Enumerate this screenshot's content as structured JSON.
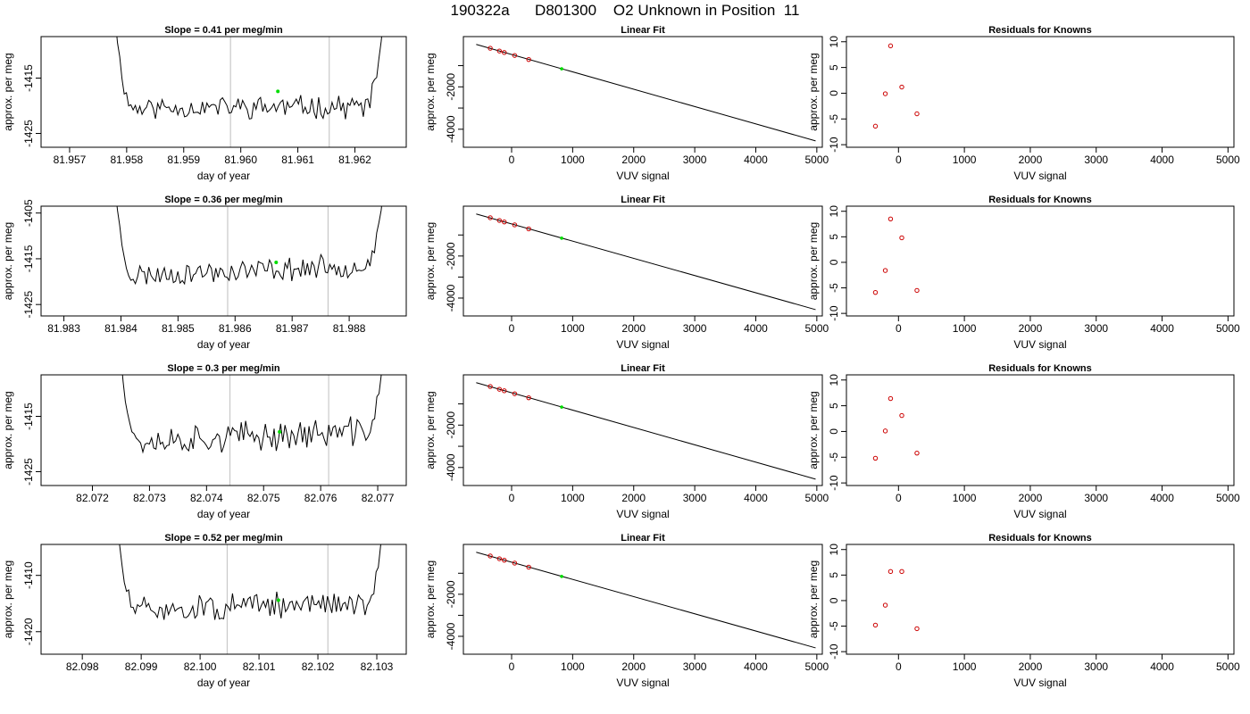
{
  "page": {
    "title": "190322a      D801300    O2 Unknown in Position  11"
  },
  "style": {
    "trace_color": "#000000",
    "marker_color": "#00dd00",
    "residual_color": "#cc0000",
    "window_line_color": "#c8c8c8"
  },
  "chart_data": [
    {
      "type": "line",
      "row": 0,
      "col": 0,
      "title": "Slope =  0.41  per meg/min",
      "xlabel": "day of year",
      "ylabel": "approx. per meg",
      "xlim": [
        81.9565,
        81.9629
      ],
      "ylim": [
        -1427.5,
        -1407.5
      ],
      "xticks": [
        81.957,
        81.958,
        81.959,
        81.96,
        81.961,
        81.962
      ],
      "xtick_labels": [
        "81.957",
        "81.958",
        "81.959",
        "81.960",
        "81.961",
        "81.962"
      ],
      "yticks": [
        -1425,
        -1415
      ],
      "ytick_labels": [
        "-1425",
        "-1415"
      ],
      "trace": {
        "x_start": 81.9578,
        "x_end": 81.9625,
        "y_start": -1407.5,
        "y_end": -1407.5,
        "base": -1420.4,
        "trend": 0.3,
        "amp": 1.7,
        "points": 120,
        "seed": 11
      },
      "window_lines": [
        81.95982,
        81.96155
      ],
      "marker": {
        "x": 81.96065,
        "y": -1417.4
      }
    },
    {
      "type": "line",
      "row": 0,
      "col": 1,
      "title": "Linear Fit",
      "xlabel": "VUV signal",
      "ylabel": "approx. per meg",
      "xlim": [
        -790,
        5090
      ],
      "ylim": [
        -4850,
        370
      ],
      "xticks": [
        0,
        1000,
        2000,
        3000,
        4000,
        5000
      ],
      "xtick_labels": [
        "0",
        "1000",
        "2000",
        "3000",
        "4000",
        "5000"
      ],
      "yticks": [
        -4000,
        -3000,
        -2000,
        -1000
      ],
      "ytick_labels": [
        "-4000",
        "",
        "-2000",
        ""
      ],
      "fit_line": {
        "x": [
          -580,
          4980
        ],
        "y": [
          0,
          -4550
        ]
      },
      "points": [
        {
          "x": -350,
          "y": -180
        },
        {
          "x": -200,
          "y": -310
        },
        {
          "x": -120,
          "y": -380
        },
        {
          "x": 50,
          "y": -520
        },
        {
          "x": 280,
          "y": -710
        }
      ],
      "unknown_point": {
        "x": 820,
        "y": -1150
      }
    },
    {
      "type": "scatter",
      "row": 0,
      "col": 2,
      "title": "Residuals for Knowns",
      "xlabel": "VUV signal",
      "ylabel": "approx. per meg",
      "xlim": [
        -790,
        5090
      ],
      "ylim": [
        -10.5,
        11
      ],
      "xticks": [
        0,
        1000,
        2000,
        3000,
        4000,
        5000
      ],
      "xtick_labels": [
        "0",
        "1000",
        "2000",
        "3000",
        "4000",
        "5000"
      ],
      "yticks": [
        -10,
        -5,
        0,
        5,
        10
      ],
      "ytick_labels": [
        "-10",
        "-5",
        "0",
        "5",
        "10"
      ],
      "points": [
        {
          "x": -350,
          "y": -6.4
        },
        {
          "x": -200,
          "y": -0.1
        },
        {
          "x": -120,
          "y": 9.2
        },
        {
          "x": 50,
          "y": 1.2
        },
        {
          "x": 280,
          "y": -4
        }
      ]
    },
    {
      "type": "line",
      "row": 1,
      "col": 0,
      "title": "Slope =  0.36  per meg/min",
      "xlabel": "day of year",
      "ylabel": "approx. per meg",
      "xlim": [
        81.9826,
        81.989
      ],
      "ylim": [
        -1427.5,
        -1403.5
      ],
      "xticks": [
        81.983,
        81.984,
        81.985,
        81.986,
        81.987,
        81.988
      ],
      "xtick_labels": [
        "81.983",
        "81.984",
        "81.985",
        "81.986",
        "81.987",
        "81.988"
      ],
      "yticks": [
        -1425,
        -1415,
        -1405
      ],
      "ytick_labels": [
        "-1425",
        "-1415",
        "-1405"
      ],
      "trace": {
        "x_start": 81.9839,
        "x_end": 81.9886,
        "y_start": -1403.5,
        "y_end": -1403.5,
        "base": -1418.8,
        "trend": 2.5,
        "amp": 2.1,
        "points": 120,
        "seed": 23
      },
      "window_lines": [
        81.98587,
        81.98763
      ],
      "marker": {
        "x": 81.98672,
        "y": -1415.8
      }
    },
    {
      "type": "line",
      "row": 1,
      "col": 1,
      "title": "Linear Fit",
      "xlabel": "VUV signal",
      "ylabel": "approx. per meg",
      "xlim": [
        -790,
        5090
      ],
      "ylim": [
        -4850,
        370
      ],
      "xticks": [
        0,
        1000,
        2000,
        3000,
        4000,
        5000
      ],
      "xtick_labels": [
        "0",
        "1000",
        "2000",
        "3000",
        "4000",
        "5000"
      ],
      "yticks": [
        -4000,
        -3000,
        -2000,
        -1000
      ],
      "ytick_labels": [
        "-4000",
        "",
        "-2000",
        ""
      ],
      "fit_line": {
        "x": [
          -580,
          4980
        ],
        "y": [
          0,
          -4550
        ]
      },
      "points": [
        {
          "x": -350,
          "y": -180
        },
        {
          "x": -200,
          "y": -310
        },
        {
          "x": -120,
          "y": -380
        },
        {
          "x": 50,
          "y": -520
        },
        {
          "x": 280,
          "y": -710
        }
      ],
      "unknown_point": {
        "x": 820,
        "y": -1150
      }
    },
    {
      "type": "scatter",
      "row": 1,
      "col": 2,
      "title": "Residuals for Knowns",
      "xlabel": "VUV signal",
      "ylabel": "approx. per meg",
      "xlim": [
        -790,
        5090
      ],
      "ylim": [
        -10.5,
        11
      ],
      "xticks": [
        0,
        1000,
        2000,
        3000,
        4000,
        5000
      ],
      "xtick_labels": [
        "0",
        "1000",
        "2000",
        "3000",
        "4000",
        "5000"
      ],
      "yticks": [
        -10,
        -5,
        0,
        5,
        10
      ],
      "ytick_labels": [
        "-10",
        "-5",
        "0",
        "5",
        "10"
      ],
      "points": [
        {
          "x": -350,
          "y": -5.9
        },
        {
          "x": -200,
          "y": -1.6
        },
        {
          "x": -120,
          "y": 8.5
        },
        {
          "x": 50,
          "y": 4.8
        },
        {
          "x": 280,
          "y": -5.5
        }
      ]
    },
    {
      "type": "line",
      "row": 2,
      "col": 0,
      "title": "Slope =  0.3  per meg/min",
      "xlabel": "day of year",
      "ylabel": "approx. per meg",
      "xlim": [
        82.0711,
        82.0775
      ],
      "ylim": [
        -1427.5,
        -1407.5
      ],
      "xticks": [
        82.072,
        82.073,
        82.074,
        82.075,
        82.076,
        82.077
      ],
      "xtick_labels": [
        "82.072",
        "82.073",
        "82.074",
        "82.075",
        "82.076",
        "82.077"
      ],
      "yticks": [
        -1425,
        -1415
      ],
      "ytick_labels": [
        "-1425",
        "-1415"
      ],
      "trace": {
        "x_start": 82.0725,
        "x_end": 82.0771,
        "y_start": -1407.5,
        "y_end": -1407.5,
        "base": -1419.6,
        "trend": 2.0,
        "amp": 2.2,
        "points": 120,
        "seed": 37
      },
      "window_lines": [
        82.07441,
        82.07614
      ],
      "marker": {
        "x": 82.07528,
        "y": -1417.8
      }
    },
    {
      "type": "line",
      "row": 2,
      "col": 1,
      "title": "Linear Fit",
      "xlabel": "VUV signal",
      "ylabel": "approx. per meg",
      "xlim": [
        -790,
        5090
      ],
      "ylim": [
        -4850,
        370
      ],
      "xticks": [
        0,
        1000,
        2000,
        3000,
        4000,
        5000
      ],
      "xtick_labels": [
        "0",
        "1000",
        "2000",
        "3000",
        "4000",
        "5000"
      ],
      "yticks": [
        -4000,
        -3000,
        -2000,
        -1000
      ],
      "ytick_labels": [
        "-4000",
        "",
        "-2000",
        ""
      ],
      "fit_line": {
        "x": [
          -580,
          4980
        ],
        "y": [
          0,
          -4550
        ]
      },
      "points": [
        {
          "x": -350,
          "y": -180
        },
        {
          "x": -200,
          "y": -310
        },
        {
          "x": -120,
          "y": -380
        },
        {
          "x": 50,
          "y": -520
        },
        {
          "x": 280,
          "y": -710
        }
      ],
      "unknown_point": {
        "x": 820,
        "y": -1150
      }
    },
    {
      "type": "scatter",
      "row": 2,
      "col": 2,
      "title": "Residuals for Knowns",
      "xlabel": "VUV signal",
      "ylabel": "approx. per meg",
      "xlim": [
        -790,
        5090
      ],
      "ylim": [
        -10.5,
        11
      ],
      "xticks": [
        0,
        1000,
        2000,
        3000,
        4000,
        5000
      ],
      "xtick_labels": [
        "0",
        "1000",
        "2000",
        "3000",
        "4000",
        "5000"
      ],
      "yticks": [
        -10,
        -5,
        0,
        5,
        10
      ],
      "ytick_labels": [
        "-10",
        "-5",
        "0",
        "5",
        "10"
      ],
      "points": [
        {
          "x": -350,
          "y": -5.2
        },
        {
          "x": -200,
          "y": 0.1
        },
        {
          "x": -120,
          "y": 6.4
        },
        {
          "x": 50,
          "y": 3.1
        },
        {
          "x": 280,
          "y": -4.2
        }
      ]
    },
    {
      "type": "line",
      "row": 3,
      "col": 0,
      "title": "Slope =  0.52  per meg/min",
      "xlabel": "day of year",
      "ylabel": "approx. per meg",
      "xlim": [
        82.0973,
        82.1035
      ],
      "ylim": [
        -1424,
        -1404.5
      ],
      "xticks": [
        82.098,
        82.099,
        82.1,
        82.101,
        82.102,
        82.103
      ],
      "xtick_labels": [
        "82.098",
        "82.099",
        "82.100",
        "82.101",
        "82.102",
        "82.103"
      ],
      "yticks": [
        -1420,
        -1410
      ],
      "ytick_labels": [
        "-1420",
        "-1410"
      ],
      "trace": {
        "x_start": 82.0986,
        "x_end": 82.1031,
        "y_start": -1404.5,
        "y_end": -1404.5,
        "base": -1416.3,
        "trend": 1.5,
        "amp": 1.9,
        "points": 120,
        "seed": 51
      },
      "window_lines": [
        82.10046,
        82.10217
      ],
      "marker": {
        "x": 82.10133,
        "y": -1414.4
      }
    },
    {
      "type": "line",
      "row": 3,
      "col": 1,
      "title": "Linear Fit",
      "xlabel": "VUV signal",
      "ylabel": "approx. per meg",
      "xlim": [
        -790,
        5090
      ],
      "ylim": [
        -4850,
        370
      ],
      "xticks": [
        0,
        1000,
        2000,
        3000,
        4000,
        5000
      ],
      "xtick_labels": [
        "0",
        "1000",
        "2000",
        "3000",
        "4000",
        "5000"
      ],
      "yticks": [
        -4000,
        -3000,
        -2000,
        -1000
      ],
      "ytick_labels": [
        "-4000",
        "",
        "-2000",
        ""
      ],
      "fit_line": {
        "x": [
          -580,
          4980
        ],
        "y": [
          0,
          -4550
        ]
      },
      "points": [
        {
          "x": -350,
          "y": -180
        },
        {
          "x": -200,
          "y": -310
        },
        {
          "x": -120,
          "y": -380
        },
        {
          "x": 50,
          "y": -520
        },
        {
          "x": 280,
          "y": -710
        }
      ],
      "unknown_point": {
        "x": 820,
        "y": -1150
      }
    },
    {
      "type": "scatter",
      "row": 3,
      "col": 2,
      "title": "Residuals for Knowns",
      "xlabel": "VUV signal",
      "ylabel": "approx. per meg",
      "xlim": [
        -790,
        5090
      ],
      "ylim": [
        -10.5,
        11
      ],
      "xticks": [
        0,
        1000,
        2000,
        3000,
        4000,
        5000
      ],
      "xtick_labels": [
        "0",
        "1000",
        "2000",
        "3000",
        "4000",
        "5000"
      ],
      "yticks": [
        -10,
        -5,
        0,
        5,
        10
      ],
      "ytick_labels": [
        "-10",
        "-5",
        "0",
        "5",
        "10"
      ],
      "points": [
        {
          "x": -350,
          "y": -4.8
        },
        {
          "x": -200,
          "y": -0.9
        },
        {
          "x": -120,
          "y": 5.7
        },
        {
          "x": 50,
          "y": 5.7
        },
        {
          "x": 280,
          "y": -5.5
        }
      ]
    }
  ]
}
